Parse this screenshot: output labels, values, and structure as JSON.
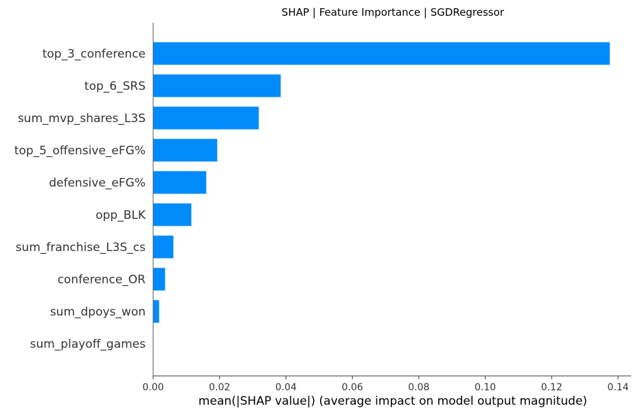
{
  "chart_data": {
    "type": "bar",
    "orientation": "horizontal",
    "title": "SHAP | Feature Importance | SGDRegressor",
    "xlabel": "mean(|SHAP value|) (average impact on model output magnitude)",
    "ylabel": "",
    "xlim": [
      0,
      0.144
    ],
    "xticks": [
      "0.00",
      "0.02",
      "0.04",
      "0.06",
      "0.08",
      "0.10",
      "0.12",
      "0.14"
    ],
    "xtick_values": [
      0,
      0.02,
      0.04,
      0.06,
      0.08,
      0.1,
      0.12,
      0.14
    ],
    "categories": [
      "top_3_conference",
      "top_6_SRS",
      "sum_mvp_shares_L3S",
      "top_5_offensive_eFG%",
      "defensive_eFG%",
      "opp_BLK",
      "sum_franchise_L3S_cs",
      "conference_OR",
      "sum_dpoys_won",
      "sum_playoff_games"
    ],
    "values": [
      0.1375,
      0.0384,
      0.0318,
      0.0193,
      0.016,
      0.0115,
      0.0061,
      0.0036,
      0.0018,
      0.0
    ],
    "bar_color": "#008bfb",
    "grid": false
  }
}
